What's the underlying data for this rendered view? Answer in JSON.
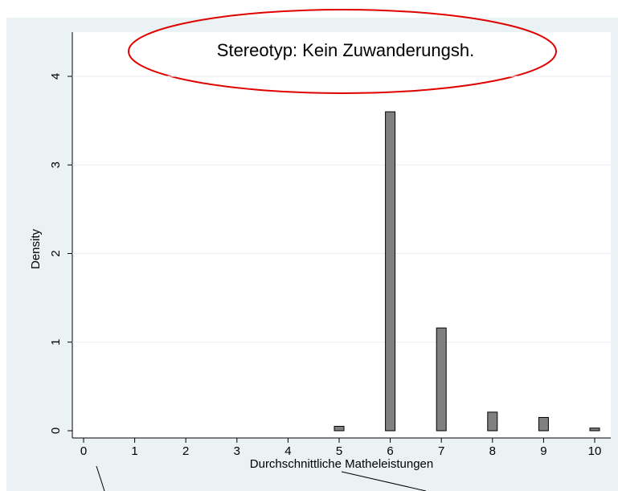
{
  "chart_data": {
    "type": "histogram",
    "annotation": "Stereotyp: Kein Zuwanderungsh.",
    "xlabel": "Durchschnittliche Matheleistungen",
    "ylabel": "Density",
    "x": [
      5,
      6,
      7,
      8,
      9,
      10
    ],
    "values": [
      0.05,
      3.6,
      1.16,
      0.21,
      0.15,
      0.03
    ],
    "color": "#808080",
    "xlim": [
      0,
      10
    ],
    "xticks": [
      0,
      1,
      2,
      3,
      4,
      5,
      6,
      7,
      8,
      9,
      10
    ],
    "ylim": [
      0,
      4
    ],
    "yticks": [
      0,
      1,
      2,
      3,
      4
    ],
    "grid": true
  }
}
